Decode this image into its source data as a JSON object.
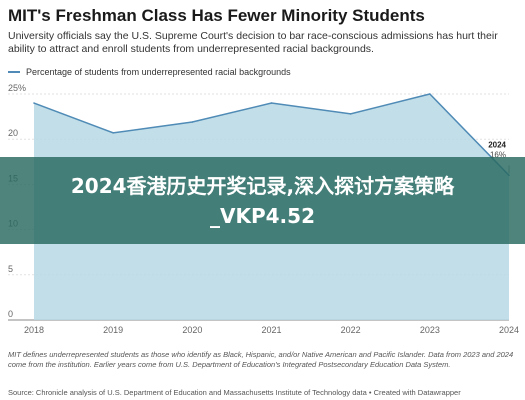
{
  "header": {
    "title": "MIT's Freshman Class Has Fewer Minority Students",
    "subtitle": "University officials say the U.S. Supreme Court's decision to bar race-conscious admissions has hurt their ability to attract and enroll students from underrepresented racial backgrounds."
  },
  "legend": {
    "label": "Percentage of students from underrepresented racial backgrounds"
  },
  "banner": {
    "text": "2024香港历史开奖记录,深入探讨方案策略_VKP4.52"
  },
  "annotation": {
    "year": "2024",
    "value": "16%"
  },
  "footer": {
    "note": "MIT defines underrepresented students as those who identify as Black, Hispanic, and/or Native American and Pacific Islander. Data from 2023 and 2024 come from the institution. Earlier years come from U.S. Department of Education's Integrated Postsecondary Education Data System.",
    "source": "Source: Chronicle analysis of U.S. Department of Education and Massachusetts Institute of Technology data • Created with Datawrapper"
  },
  "colors": {
    "area": "#b7d8e4",
    "line": "#4f8bb6",
    "banner": "#28695f"
  },
  "chart_data": {
    "type": "area",
    "x": [
      2018,
      2019,
      2020,
      2021,
      2022,
      2023,
      2024
    ],
    "series": [
      {
        "name": "Percentage of students from underrepresented racial backgrounds",
        "values": [
          24,
          20.7,
          21.9,
          24,
          22.8,
          25,
          16
        ]
      }
    ],
    "yticks": [
      "0",
      "5",
      "10",
      "15",
      "20",
      "25%"
    ],
    "ylim": [
      0,
      25
    ],
    "xlabel": "",
    "ylabel": "",
    "grid": true
  }
}
